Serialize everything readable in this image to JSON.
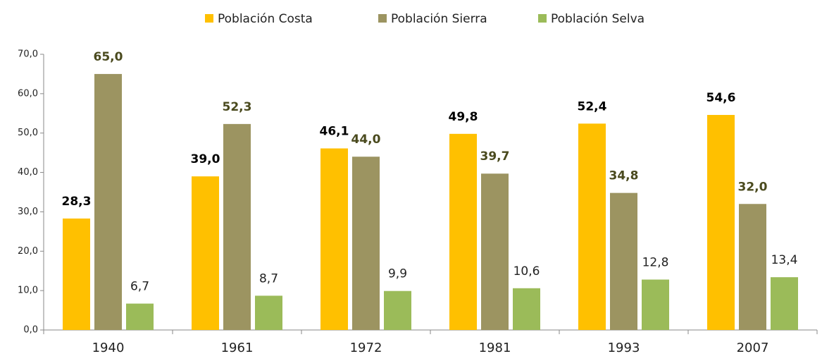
{
  "chart_data": {
    "type": "bar",
    "categories": [
      "1940",
      "1961",
      "1972",
      "1981",
      "1993",
      "2007"
    ],
    "series": [
      {
        "name": "Población Costa",
        "color": "#ffc000",
        "values": [
          28.3,
          39.0,
          46.1,
          49.8,
          52.4,
          54.6
        ],
        "value_labels": [
          "28,3",
          "39,0",
          "46,1",
          "49,8",
          "52,4",
          "54,6"
        ]
      },
      {
        "name": "Población Sierra",
        "color": "#9c9461",
        "values": [
          65.0,
          52.3,
          44.0,
          39.7,
          34.8,
          32.0
        ],
        "value_labels": [
          "65,0",
          "52,3",
          "44,0",
          "39,7",
          "34,8",
          "32,0"
        ]
      },
      {
        "name": "Población Selva",
        "color": "#9bbb59",
        "values": [
          6.7,
          8.7,
          9.9,
          10.6,
          12.8,
          13.4
        ],
        "value_labels": [
          "6,7",
          "8,7",
          "9,9",
          "10,6",
          "12,8",
          "13,4"
        ]
      }
    ],
    "ylim": [
      0,
      70
    ],
    "yticks": [
      {
        "value": 0,
        "label": "0,0"
      },
      {
        "value": 10,
        "label": "10,0"
      },
      {
        "value": 20,
        "label": "20,0"
      },
      {
        "value": 30,
        "label": "30,0"
      },
      {
        "value": 40,
        "label": "40,0"
      },
      {
        "value": 50,
        "label": "50,0"
      },
      {
        "value": 60,
        "label": "60,0"
      },
      {
        "value": 70,
        "label": "70,0"
      }
    ],
    "legend": "top"
  }
}
